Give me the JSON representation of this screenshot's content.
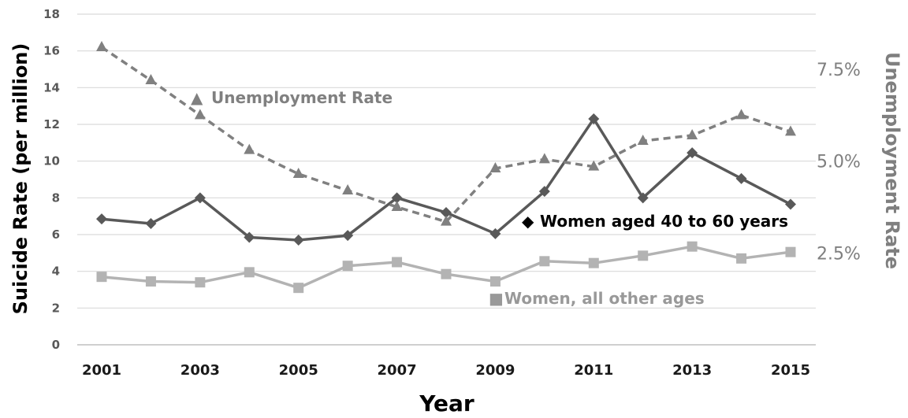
{
  "chart_data": {
    "type": "line",
    "xlabel": "Year",
    "ylabel": "Suicide Rate (per million)",
    "y2label": "Unemployment Rate",
    "ylim": [
      0,
      18
    ],
    "y_ticks": [
      0,
      2,
      4,
      6,
      8,
      10,
      12,
      14,
      16,
      18
    ],
    "x_tick_labels": [
      "2001",
      "2003",
      "2005",
      "2007",
      "2009",
      "2011",
      "2013",
      "2015"
    ],
    "y2lim": [
      0,
      9
    ],
    "y2_ticks": [
      2.5,
      5.0,
      7.5
    ],
    "y2_tick_labels": [
      "2.5%",
      "5.0%",
      "7.5%"
    ],
    "grid": true,
    "x": [
      2001,
      2002,
      2003,
      2004,
      2005,
      2006,
      2007,
      2008,
      2009,
      2010,
      2011,
      2012,
      2013,
      2014,
      2015
    ],
    "series": [
      {
        "name": "Unemployment Rate",
        "axis": "right",
        "unit": "%",
        "style": "dashed",
        "marker": "triangle",
        "color": "#808080",
        "label_marker": "▲",
        "values": [
          8.1,
          7.2,
          6.25,
          5.3,
          4.65,
          4.2,
          3.75,
          3.35,
          4.8,
          5.05,
          4.85,
          5.55,
          5.7,
          6.25,
          5.8
        ]
      },
      {
        "name": "Women aged 40 to 60 years",
        "axis": "left",
        "style": "solid",
        "marker": "diamond",
        "color": "#595959",
        "label_color": "#000000",
        "label_marker": "◆",
        "values": [
          6.85,
          6.6,
          8.0,
          5.85,
          5.7,
          5.95,
          8.0,
          7.2,
          6.05,
          8.35,
          12.3,
          8.0,
          10.45,
          9.05,
          7.65
        ]
      },
      {
        "name": "Women, all other ages",
        "axis": "left",
        "style": "solid",
        "marker": "square",
        "color": "#b3b3b3",
        "label_color": "#999999",
        "label_marker": "■",
        "values": [
          3.7,
          3.45,
          3.4,
          3.95,
          3.1,
          4.3,
          4.5,
          3.85,
          3.45,
          4.55,
          4.45,
          4.85,
          5.35,
          4.7,
          5.05
        ]
      }
    ]
  }
}
